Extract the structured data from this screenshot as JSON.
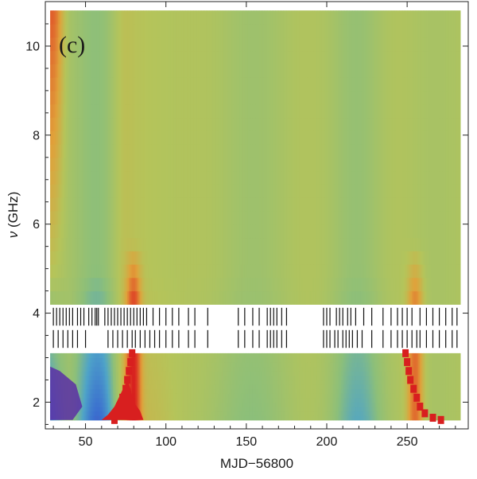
{
  "chart_data": {
    "type": "heatmap",
    "title": "",
    "panel_label": "(c)",
    "xlabel": "MJD−56800",
    "ylabel_symbol": "ν",
    "ylabel_unit": " (GHz)",
    "xlim": [
      25,
      288
    ],
    "ylim": [
      1.4,
      11.0
    ],
    "x_ticks": [
      50,
      100,
      150,
      200,
      250
    ],
    "x_tick_labels": [
      "50",
      "100",
      "150",
      "200",
      "250"
    ],
    "y_ticks": [
      2,
      4,
      6,
      8,
      10
    ],
    "y_tick_labels": [
      "2",
      "4",
      "6",
      "8",
      "10"
    ],
    "data_x_range": [
      28,
      283
    ],
    "upper_band_ghz": [
      4.2,
      10.8
    ],
    "lower_band_ghz": [
      1.6,
      3.1
    ],
    "colormap": [
      "#5a2ea6",
      "#3b6fcf",
      "#4fa4c8",
      "#8cbf7a",
      "#b5c45a",
      "#e0a13a",
      "#e05a2a",
      "#d81f1f"
    ],
    "background_value": 0.55,
    "features": [
      {
        "name": "low-frequency trough",
        "x": 58,
        "width": 13,
        "amplitude": -0.42
      },
      {
        "name": "low-frequency rim",
        "x": 73,
        "width": 7,
        "amplitude": 0.12
      },
      {
        "name": "flare at MJD-56800 approx 80",
        "x": 80,
        "width": 4.5,
        "amplitude": 0.38
      },
      {
        "name": "mid-interval rise",
        "x": 90,
        "width": 18,
        "amplitude": 0.07
      },
      {
        "name": "trough near 150",
        "x": 150,
        "width": 30,
        "amplitude": -0.1
      },
      {
        "name": "trough near 220",
        "x": 220,
        "width": 16,
        "amplitude": -0.24
      },
      {
        "name": "flare at MJD-56800 approx 255",
        "x": 255,
        "width": 5,
        "amplitude": 0.28
      },
      {
        "name": "early high-frequency excess",
        "x": 30,
        "width": 6,
        "amplitude": 0.2
      }
    ],
    "observation_row_1_mjd": [
      30,
      32,
      34,
      36,
      38,
      40,
      42,
      45,
      47,
      49,
      52,
      54,
      56,
      57,
      58,
      62,
      64,
      66,
      68,
      70,
      72,
      74,
      76,
      78,
      80,
      82,
      84,
      86,
      88,
      92,
      96,
      100,
      104,
      108,
      114,
      118,
      126,
      145,
      149,
      154,
      158,
      163,
      165,
      167,
      169,
      172,
      175,
      198,
      200,
      202,
      206,
      208,
      210,
      213,
      215,
      218,
      223,
      228,
      235,
      240,
      244,
      247,
      250,
      253,
      258,
      262,
      266,
      270,
      274,
      278,
      281
    ],
    "observation_row_2_mjd": [
      30,
      33,
      36,
      39,
      42,
      45,
      50,
      64,
      67,
      70,
      73,
      76,
      79,
      81,
      84,
      87,
      90,
      93,
      96,
      100,
      104,
      108,
      114,
      118,
      126,
      145,
      149,
      154,
      158,
      163,
      165,
      167,
      169,
      172,
      175,
      198,
      200,
      202,
      205,
      207,
      210,
      212,
      214,
      216,
      219,
      222,
      228,
      235,
      240,
      244,
      247,
      250,
      253,
      256,
      258,
      262,
      266,
      270,
      274,
      278,
      281
    ],
    "flare_track_1": [
      [
        68,
        1.6
      ],
      [
        70,
        1.75
      ],
      [
        71,
        1.9
      ],
      [
        73,
        2.1
      ],
      [
        75,
        2.3
      ],
      [
        76,
        2.5
      ],
      [
        77,
        2.7
      ],
      [
        78,
        2.9
      ],
      [
        79,
        3.1
      ]
    ],
    "flare_track_2": [
      [
        249,
        3.1
      ],
      [
        250,
        2.9
      ],
      [
        251,
        2.7
      ],
      [
        252,
        2.5
      ],
      [
        254,
        2.3
      ],
      [
        256,
        2.1
      ],
      [
        258,
        1.9
      ],
      [
        261,
        1.75
      ],
      [
        266,
        1.65
      ],
      [
        271,
        1.6
      ]
    ],
    "grid": false,
    "legend": "none"
  }
}
